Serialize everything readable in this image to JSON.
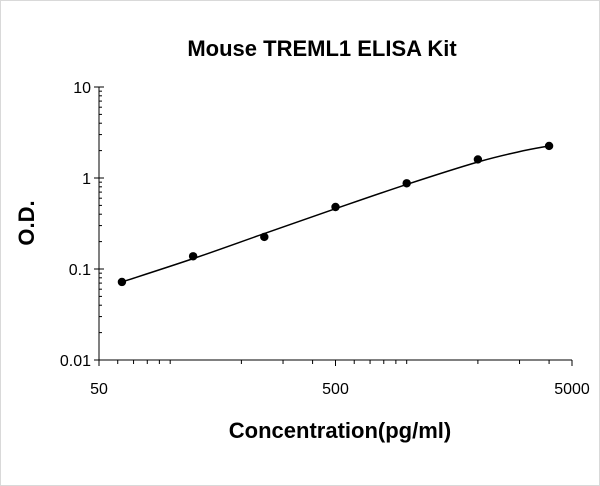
{
  "chart_data": {
    "type": "scatter",
    "title": "Mouse TREML1 ELISA Kit",
    "xlabel": "Concentration(pg/ml)",
    "ylabel": "O.D.",
    "x_scale": "log",
    "y_scale": "log",
    "xlim": [
      50,
      5000
    ],
    "ylim": [
      0.01,
      10
    ],
    "x_ticks": [
      "50",
      "500",
      "5000"
    ],
    "y_ticks": [
      "0.01",
      "0.1",
      "1",
      "10"
    ],
    "grid": false,
    "legend": "none",
    "colors": {
      "points": "#000000",
      "line": "#000000",
      "axis": "#000000"
    },
    "series": [
      {
        "x": [
          62.5,
          125,
          250,
          500,
          1000,
          2000,
          4000
        ],
        "y": [
          0.072,
          0.138,
          0.225,
          0.48,
          0.875,
          1.6,
          2.25
        ]
      }
    ],
    "fit_curve": {
      "x": [
        62.5,
        125,
        250,
        500,
        1000,
        2000,
        3000,
        4000
      ],
      "y": [
        0.072,
        0.13,
        0.245,
        0.46,
        0.85,
        1.5,
        1.95,
        2.25
      ]
    }
  }
}
